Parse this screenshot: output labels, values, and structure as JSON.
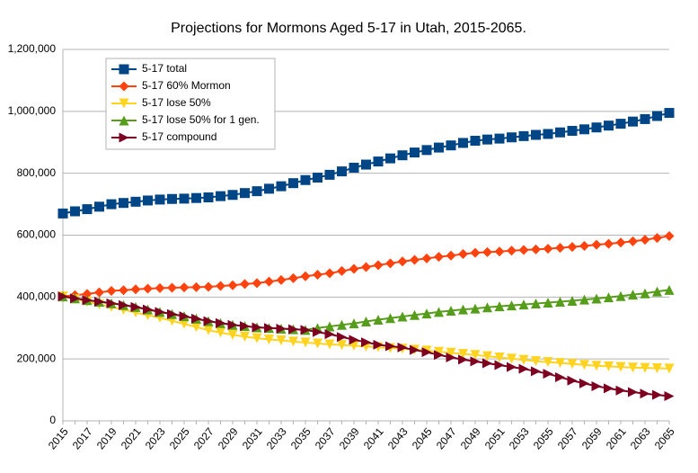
{
  "chart_data": {
    "type": "line",
    "title": "Projections for Mormons Aged 5-17 in Utah, 2015-2065.",
    "categories": [
      "2015",
      null,
      "2017",
      null,
      "2019",
      null,
      "2021",
      null,
      "2023",
      null,
      "2025",
      null,
      "2027",
      null,
      "2029",
      null,
      "2031",
      null,
      "2033",
      null,
      "2035",
      null,
      "2037",
      null,
      "2039",
      null,
      "2041",
      null,
      "2043",
      null,
      "2045",
      null,
      "2047",
      null,
      "2049",
      null,
      "2051",
      null,
      "2053",
      null,
      "2055",
      null,
      "2057",
      null,
      "2059",
      null,
      "2061",
      null,
      "2063",
      null,
      "2065"
    ],
    "series": [
      {
        "name": "5-17 total",
        "color": "#004586",
        "marker": "square",
        "values": [
          670000,
          677000,
          684000,
          692000,
          700000,
          704000,
          708000,
          712000,
          715000,
          717000,
          718000,
          720000,
          722000,
          726000,
          730000,
          736000,
          742000,
          750000,
          758000,
          768000,
          778000,
          786000,
          795000,
          806000,
          818000,
          828000,
          838000,
          848000,
          858000,
          867000,
          875000,
          883000,
          890000,
          898000,
          905000,
          909000,
          912000,
          916000,
          920000,
          924000,
          927000,
          932000,
          937000,
          942000,
          948000,
          954000,
          960000,
          967000,
          975000,
          985000,
          995000
        ]
      },
      {
        "name": "5-17 60% Mormon",
        "color": "#ff420e",
        "marker": "diamond",
        "values": [
          402000,
          406000,
          410000,
          415000,
          420000,
          422000,
          425000,
          427000,
          429000,
          430000,
          431000,
          432000,
          433000,
          436000,
          438000,
          442000,
          445000,
          450000,
          455000,
          461000,
          467000,
          472000,
          477000,
          484000,
          491000,
          497000,
          503000,
          509000,
          515000,
          520000,
          525000,
          530000,
          534000,
          539000,
          543000,
          545000,
          547000,
          550000,
          552000,
          554000,
          556000,
          559000,
          562000,
          565000,
          569000,
          572000,
          576000,
          580000,
          585000,
          591000,
          597000
        ]
      },
      {
        "name": "5-17 lose 50%",
        "color": "#ffd320",
        "marker": "triangle-down",
        "values": [
          402000,
          393000,
          385000,
          376000,
          368000,
          359000,
          350000,
          341000,
          333000,
          323000,
          313000,
          303000,
          293000,
          285000,
          278000,
          272000,
          267000,
          263000,
          260000,
          256000,
          253000,
          250000,
          247000,
          245000,
          243000,
          240000,
          238000,
          235000,
          233000,
          230000,
          227000,
          223000,
          220000,
          216000,
          213000,
          209000,
          205000,
          201000,
          197000,
          193000,
          190000,
          187000,
          184000,
          181000,
          178000,
          176000,
          174000,
          172000,
          171000,
          170000,
          169000
        ]
      },
      {
        "name": "5-17 lose 50% for 1 gen.",
        "color": "#579d1c",
        "marker": "triangle-up",
        "values": [
          402000,
          396000,
          390000,
          385000,
          380000,
          374000,
          368000,
          360000,
          352000,
          345000,
          338000,
          330000,
          322000,
          316000,
          310000,
          306000,
          302000,
          300000,
          298000,
          296000,
          294000,
          300000,
          305000,
          310000,
          315000,
          321000,
          327000,
          332000,
          337000,
          342000,
          347000,
          352000,
          356000,
          360000,
          363000,
          367000,
          370000,
          373000,
          376000,
          379000,
          382000,
          385000,
          388000,
          392000,
          395000,
          399000,
          403000,
          408000,
          412000,
          418000,
          423000
        ]
      },
      {
        "name": "5-17 compound",
        "color": "#7e0021",
        "marker": "triangle-right",
        "values": [
          402000,
          396000,
          390000,
          385000,
          380000,
          374000,
          368000,
          360000,
          352000,
          345000,
          338000,
          330000,
          322000,
          316000,
          310000,
          306000,
          302000,
          300000,
          298000,
          296000,
          294000,
          287000,
          280000,
          271000,
          262000,
          254000,
          246000,
          241000,
          237000,
          229000,
          222000,
          213000,
          205000,
          198000,
          192000,
          186000,
          180000,
          174000,
          168000,
          160000,
          152000,
          141000,
          130000,
          121000,
          112000,
          105000,
          98000,
          93000,
          88000,
          84000,
          80000
        ]
      }
    ],
    "ylim": [
      0,
      1200000
    ],
    "yticks": [
      0,
      {
        "value": 200000,
        "label": "200,000"
      },
      {
        "value": 400000,
        "label": "400,000"
      },
      {
        "value": 600000,
        "label": "600,000"
      },
      {
        "value": 800000,
        "label": "800,000"
      },
      {
        "value": 1000000,
        "label": "1,000,000"
      },
      {
        "value": 1200000,
        "label": "1,200,000"
      }
    ],
    "grid": true,
    "legend": "upper left"
  }
}
